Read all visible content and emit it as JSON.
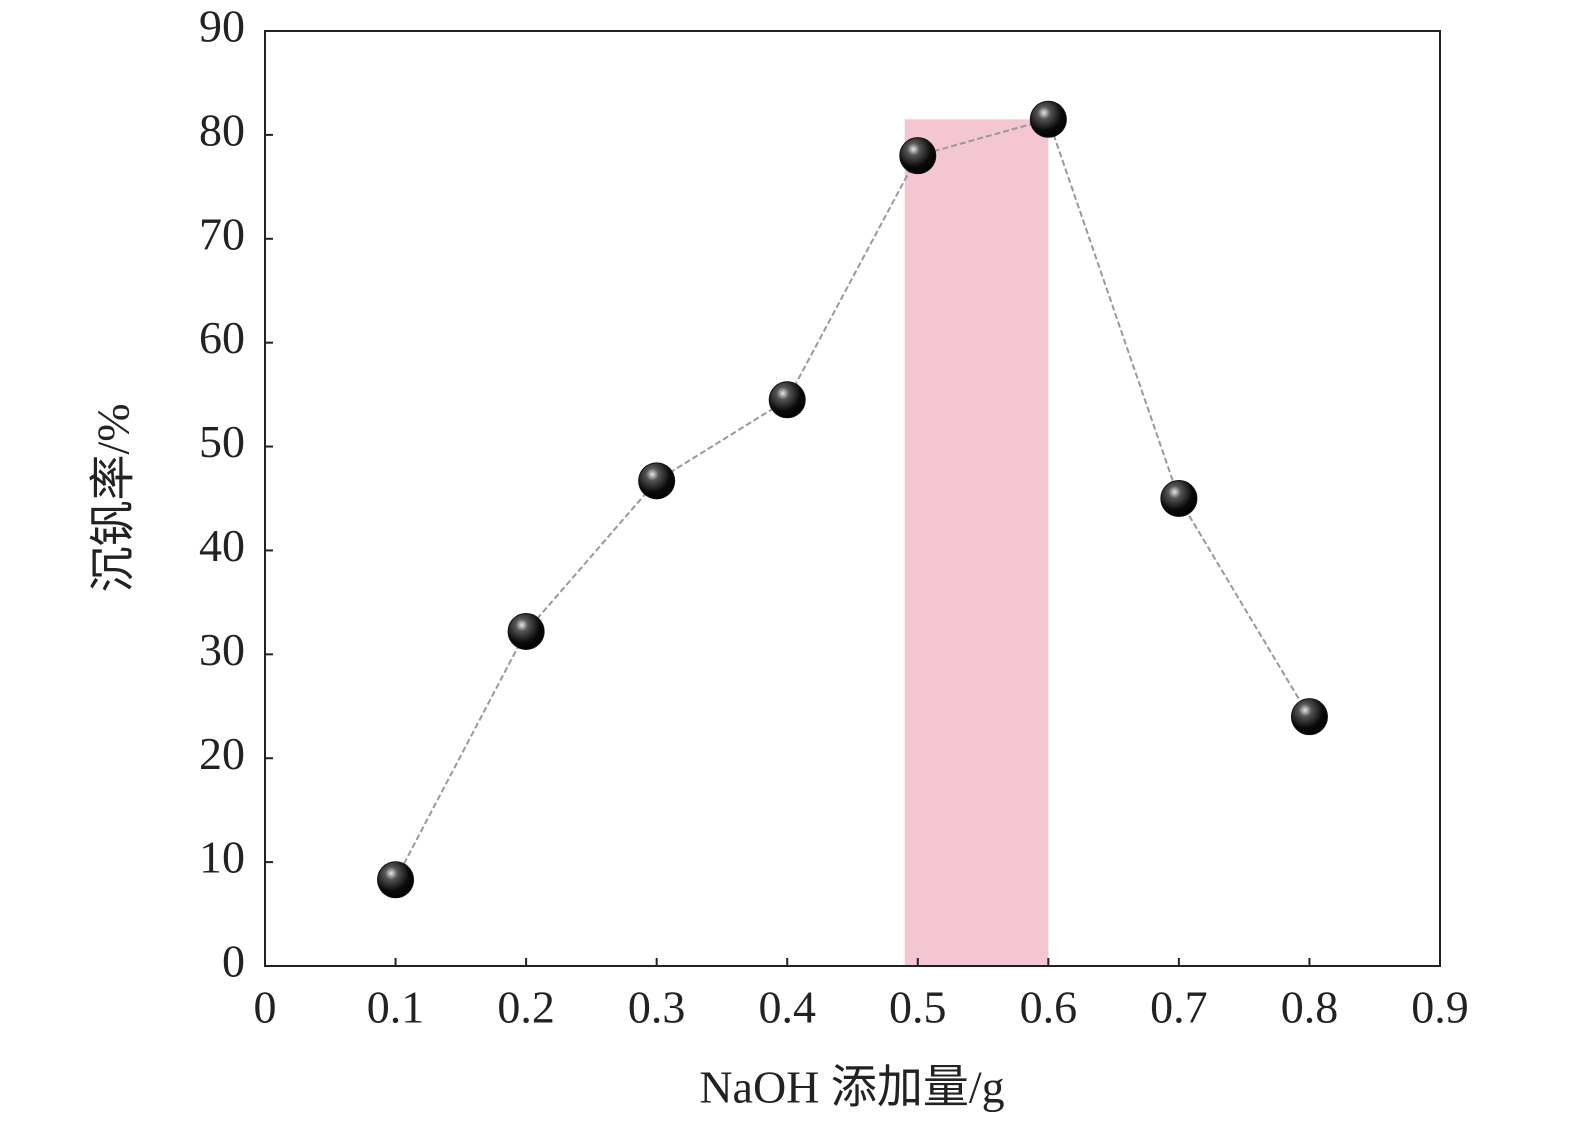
{
  "chart_data": {
    "type": "line",
    "xlabel": "NaOH 添加量/g",
    "ylabel": "沉钒率/%",
    "x": [
      0.1,
      0.2,
      0.3,
      0.4,
      0.5,
      0.6,
      0.7,
      0.8
    ],
    "series": [
      {
        "color": "#111111",
        "line_color": "#999999",
        "values": [
          8.3,
          32.2,
          46.7,
          54.5,
          78,
          81.5,
          45,
          24
        ]
      }
    ],
    "xlim": [
      0,
      0.9
    ],
    "xticks": [
      0,
      0.1,
      0.2,
      0.3,
      0.4,
      0.5,
      0.6,
      0.7,
      0.8,
      0.9
    ],
    "ylim": [
      0,
      90
    ],
    "yticks": [
      0,
      10,
      20,
      30,
      40,
      50,
      60,
      70,
      80,
      90
    ],
    "span": {
      "x": [
        0.49,
        0.6
      ],
      "y": [
        0,
        81.5
      ],
      "color": "#f3c6d2"
    }
  }
}
